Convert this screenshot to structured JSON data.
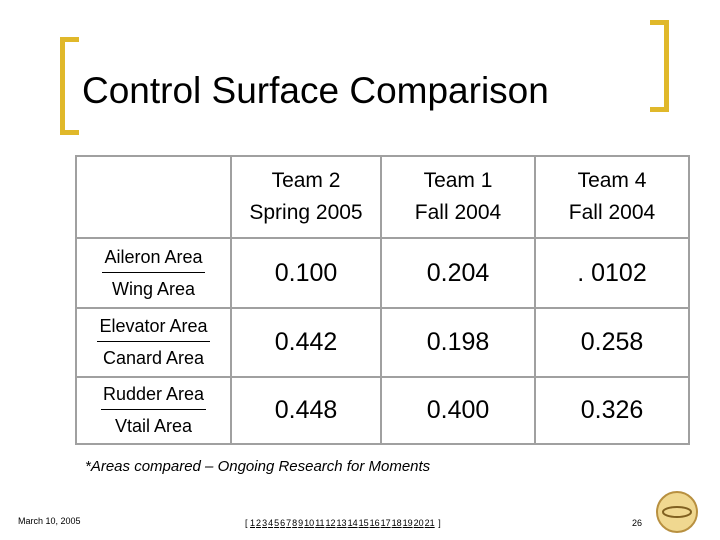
{
  "header": {
    "title": "Control Surface Comparison"
  },
  "table": {
    "columns": [
      "Team 2\nSpring 2005",
      "Team 1\nFall 2004",
      "Team 4\nFall 2004"
    ],
    "rows": [
      {
        "numerator": "Aileron Area",
        "denominator": "Wing Area",
        "cells": [
          "0.100",
          "0.204",
          ". 0102"
        ]
      },
      {
        "numerator": "Elevator Area",
        "denominator": "Canard Area",
        "cells": [
          "0.442",
          "0.198",
          "0.258"
        ]
      },
      {
        "numerator": "Rudder Area",
        "denominator": "Vtail Area",
        "cells": [
          "0.448",
          "0.400",
          "0.326"
        ]
      }
    ]
  },
  "footnote": "*Areas compared – Ongoing Research for Moments",
  "footer": {
    "date": "March 10, 2005",
    "nav": {
      "open": "[",
      "pages": [
        "1",
        "2",
        "3",
        "4",
        "5",
        "6",
        "7",
        "8",
        "9",
        "10",
        "11",
        "12",
        "13",
        "14",
        "15",
        "16",
        "17",
        "18",
        "19",
        "20",
        "21"
      ],
      "close": "]"
    },
    "page": "26"
  }
}
